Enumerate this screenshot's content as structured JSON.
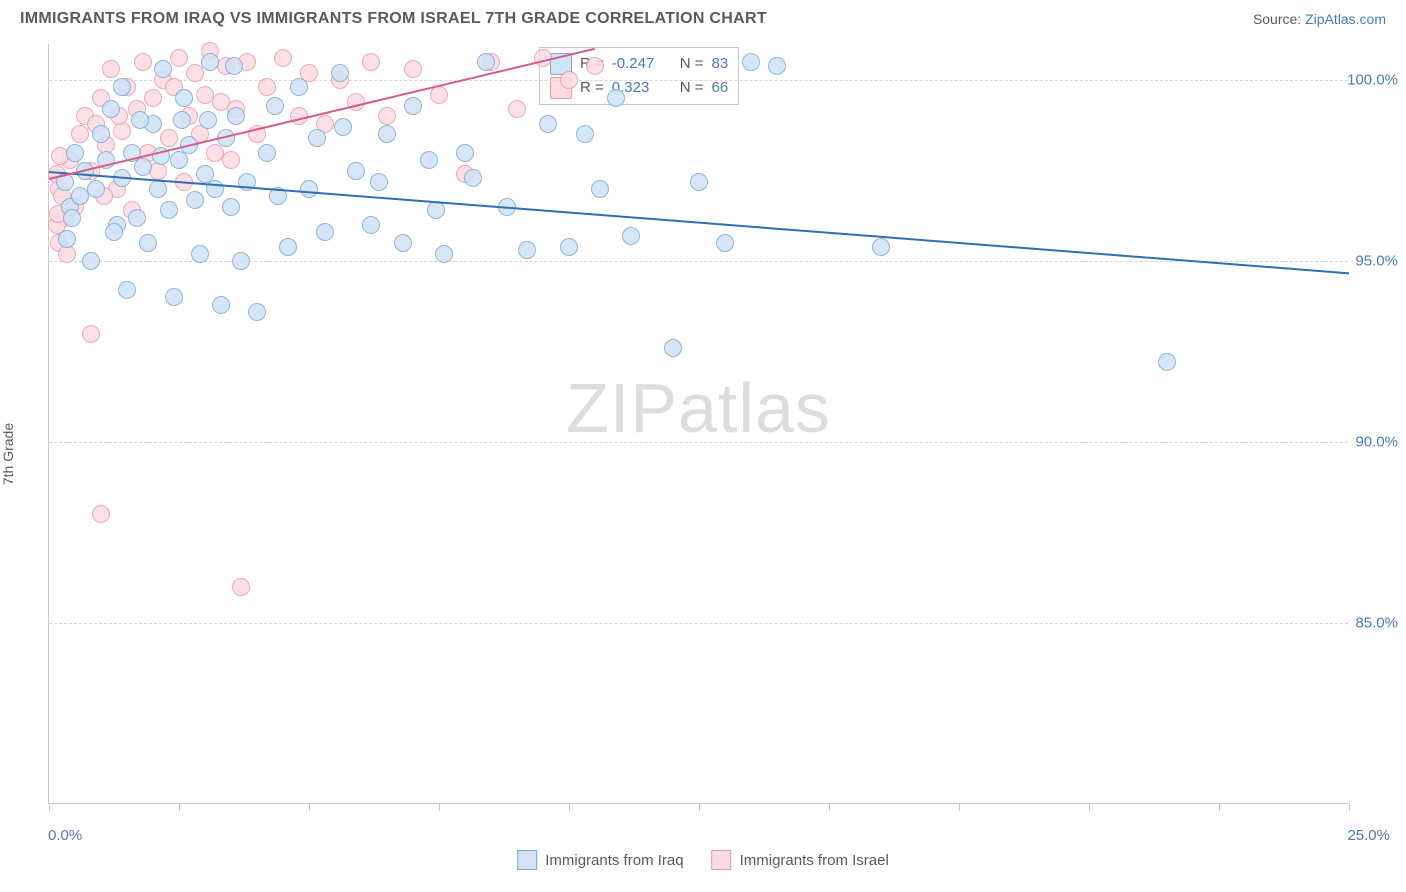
{
  "header": {
    "title": "IMMIGRANTS FROM IRAQ VS IMMIGRANTS FROM ISRAEL 7TH GRADE CORRELATION CHART",
    "source_prefix": "Source: ",
    "source_name": "ZipAtlas.com"
  },
  "chart": {
    "type": "scatter",
    "ylabel": "7th Grade",
    "xlim": [
      0,
      25
    ],
    "ylim": [
      80,
      101
    ],
    "yticks": [
      85,
      90,
      95,
      100
    ],
    "ytick_labels": [
      "85.0%",
      "90.0%",
      "95.0%",
      "100.0%"
    ],
    "xticks": [
      0,
      2.5,
      5,
      7.5,
      10,
      12.5,
      15,
      17.5,
      20,
      22.5,
      25
    ],
    "xaxis_left_label": "0.0%",
    "xaxis_right_label": "25.0%",
    "background_color": "#ffffff",
    "grid_color": "#d6d6d6",
    "axis_color": "#c9c9c9",
    "text_color": "#5a5a5a",
    "value_color": "#4a7ab8",
    "marker_radius": 9,
    "watermark": "ZIPatlas",
    "series": [
      {
        "name": "Immigrants from Iraq",
        "fill": "#cfe2f6",
        "stroke": "#7fa9d4",
        "line_color": "#2f6fb3",
        "r_label": "R =",
        "r_value": "-0.247",
        "n_label": "N =",
        "n_value": "83",
        "trend": {
          "x1": 0,
          "y1": 97.5,
          "x2": 25,
          "y2": 94.7
        },
        "points": [
          [
            0.3,
            97.2
          ],
          [
            0.4,
            96.5
          ],
          [
            0.5,
            98.0
          ],
          [
            0.6,
            96.8
          ],
          [
            0.7,
            97.5
          ],
          [
            0.8,
            95.0
          ],
          [
            0.9,
            97.0
          ],
          [
            1.0,
            98.5
          ],
          [
            1.1,
            97.8
          ],
          [
            1.2,
            99.2
          ],
          [
            1.3,
            96.0
          ],
          [
            1.4,
            97.3
          ],
          [
            1.5,
            94.2
          ],
          [
            1.6,
            98.0
          ],
          [
            1.7,
            96.2
          ],
          [
            1.8,
            97.6
          ],
          [
            1.9,
            95.5
          ],
          [
            2.0,
            98.8
          ],
          [
            2.1,
            97.0
          ],
          [
            2.2,
            100.3
          ],
          [
            2.3,
            96.4
          ],
          [
            2.4,
            94.0
          ],
          [
            2.5,
            97.8
          ],
          [
            2.6,
            99.5
          ],
          [
            2.7,
            98.2
          ],
          [
            2.8,
            96.7
          ],
          [
            2.9,
            95.2
          ],
          [
            3.0,
            97.4
          ],
          [
            3.1,
            100.5
          ],
          [
            3.2,
            97.0
          ],
          [
            3.3,
            93.8
          ],
          [
            3.4,
            98.4
          ],
          [
            3.5,
            96.5
          ],
          [
            3.6,
            99.0
          ],
          [
            3.7,
            95.0
          ],
          [
            3.8,
            97.2
          ],
          [
            4.0,
            93.6
          ],
          [
            4.2,
            98.0
          ],
          [
            4.4,
            96.8
          ],
          [
            4.6,
            95.4
          ],
          [
            4.8,
            99.8
          ],
          [
            5.0,
            97.0
          ],
          [
            5.3,
            95.8
          ],
          [
            5.6,
            100.2
          ],
          [
            5.9,
            97.5
          ],
          [
            6.2,
            96.0
          ],
          [
            6.5,
            98.5
          ],
          [
            6.8,
            95.5
          ],
          [
            7.0,
            99.3
          ],
          [
            7.3,
            97.8
          ],
          [
            7.6,
            95.2
          ],
          [
            8.0,
            98.0
          ],
          [
            8.4,
            100.5
          ],
          [
            8.8,
            96.5
          ],
          [
            9.2,
            95.3
          ],
          [
            9.6,
            98.8
          ],
          [
            10.0,
            95.4
          ],
          [
            10.3,
            98.5
          ],
          [
            10.6,
            97.0
          ],
          [
            10.9,
            99.5
          ],
          [
            11.2,
            95.7
          ],
          [
            12.0,
            92.6
          ],
          [
            12.5,
            97.2
          ],
          [
            13.0,
            95.5
          ],
          [
            13.5,
            100.5
          ],
          [
            16.0,
            95.4
          ],
          [
            21.5,
            92.2
          ],
          [
            1.4,
            99.8
          ],
          [
            0.35,
            95.6
          ],
          [
            0.45,
            96.2
          ],
          [
            1.25,
            95.8
          ],
          [
            1.75,
            98.9
          ],
          [
            2.15,
            97.9
          ],
          [
            2.55,
            98.9
          ],
          [
            3.05,
            98.9
          ],
          [
            3.55,
            100.4
          ],
          [
            4.35,
            99.3
          ],
          [
            5.15,
            98.4
          ],
          [
            5.65,
            98.7
          ],
          [
            6.35,
            97.2
          ],
          [
            7.45,
            96.4
          ],
          [
            8.15,
            97.3
          ],
          [
            14.0,
            100.4
          ]
        ]
      },
      {
        "name": "Immigrants from Israel",
        "fill": "#fcdbe2",
        "stroke": "#e79bb0",
        "line_color": "#d95a86",
        "r_label": "R =",
        "r_value": "0.323",
        "n_label": "N =",
        "n_value": "66",
        "trend": {
          "x1": 0,
          "y1": 97.3,
          "x2": 10.5,
          "y2": 100.9
        },
        "points": [
          [
            0.2,
            97.0
          ],
          [
            0.3,
            96.2
          ],
          [
            0.4,
            97.8
          ],
          [
            0.5,
            96.5
          ],
          [
            0.6,
            98.5
          ],
          [
            0.7,
            99.0
          ],
          [
            0.8,
            97.5
          ],
          [
            0.9,
            98.8
          ],
          [
            1.0,
            99.5
          ],
          [
            1.1,
            98.2
          ],
          [
            1.2,
            100.3
          ],
          [
            1.3,
            97.0
          ],
          [
            1.4,
            98.6
          ],
          [
            1.5,
            99.8
          ],
          [
            1.6,
            96.4
          ],
          [
            1.7,
            99.2
          ],
          [
            1.8,
            100.5
          ],
          [
            1.9,
            98.0
          ],
          [
            2.0,
            99.5
          ],
          [
            2.1,
            97.5
          ],
          [
            2.2,
            100.0
          ],
          [
            2.3,
            98.4
          ],
          [
            2.4,
            99.8
          ],
          [
            2.5,
            100.6
          ],
          [
            2.6,
            97.2
          ],
          [
            2.7,
            99.0
          ],
          [
            2.8,
            100.2
          ],
          [
            2.9,
            98.5
          ],
          [
            3.0,
            99.6
          ],
          [
            3.1,
            100.8
          ],
          [
            3.2,
            98.0
          ],
          [
            3.3,
            99.4
          ],
          [
            3.4,
            100.4
          ],
          [
            3.5,
            97.8
          ],
          [
            3.6,
            99.2
          ],
          [
            3.8,
            100.5
          ],
          [
            4.0,
            98.5
          ],
          [
            4.2,
            99.8
          ],
          [
            4.5,
            100.6
          ],
          [
            4.8,
            99.0
          ],
          [
            5.0,
            100.2
          ],
          [
            5.3,
            98.8
          ],
          [
            5.6,
            100.0
          ],
          [
            5.9,
            99.4
          ],
          [
            6.2,
            100.5
          ],
          [
            6.5,
            99.0
          ],
          [
            7.0,
            100.3
          ],
          [
            7.5,
            99.6
          ],
          [
            8.0,
            97.4
          ],
          [
            8.5,
            100.5
          ],
          [
            9.0,
            99.2
          ],
          [
            9.5,
            100.6
          ],
          [
            10.0,
            100.0
          ],
          [
            10.5,
            100.4
          ],
          [
            0.8,
            93.0
          ],
          [
            0.15,
            96.0
          ],
          [
            0.2,
            95.5
          ],
          [
            0.25,
            96.8
          ],
          [
            0.35,
            95.2
          ],
          [
            1.05,
            96.8
          ],
          [
            1.35,
            99.0
          ],
          [
            3.7,
            86.0
          ],
          [
            1.0,
            88.0
          ],
          [
            0.15,
            97.4
          ],
          [
            0.18,
            96.3
          ],
          [
            0.22,
            97.9
          ]
        ]
      }
    ],
    "bottom_legend": [
      {
        "label": "Immigrants from Iraq",
        "fill": "#cfe2f6",
        "stroke": "#7fa9d4"
      },
      {
        "label": "Immigrants from Israel",
        "fill": "#fcdbe2",
        "stroke": "#e79bb0"
      }
    ]
  }
}
